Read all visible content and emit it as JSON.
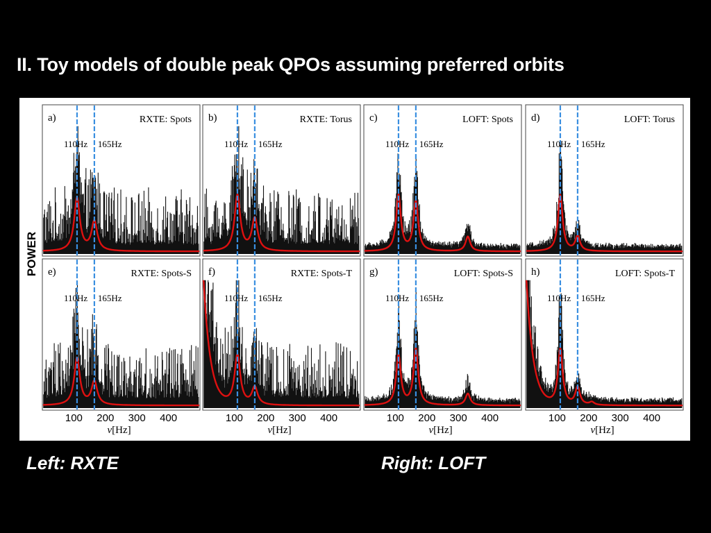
{
  "slide": {
    "title": "II. Toy models of double peak QPOs assuming preferred orbits",
    "caption_left": "Left: RXTE",
    "caption_right": "Right: LOFT"
  },
  "figure": {
    "ylabel": "POWER",
    "xlabel_prefix": "ν",
    "xlabel_unit": "[Hz]",
    "xticks": [
      100,
      200,
      300,
      400
    ],
    "xlim": [
      0,
      500
    ],
    "colors": {
      "spectrum": "#111111",
      "model": "#dd1010",
      "marker_line": "#3a8fe0",
      "frame": "#444444"
    }
  },
  "chart_data": [
    {
      "type": "line",
      "panel": "a)",
      "title": "RXTE: Spots",
      "markers": [
        {
          "x": 110,
          "label": "110Hz"
        },
        {
          "x": 165,
          "label": "165Hz"
        }
      ],
      "series": [
        {
          "values": [
            {
              "x": 110,
              "y": 0.9
            },
            {
              "x": 165,
              "y": 0.5
            }
          ]
        }
      ]
    },
    {
      "type": "line",
      "panel": "b)",
      "title": "RXTE: Torus",
      "markers": [
        {
          "x": 110,
          "label": "110Hz"
        },
        {
          "x": 165,
          "label": "165Hz"
        }
      ],
      "series": [
        {
          "values": [
            {
              "x": 110,
              "y": 0.95
            },
            {
              "x": 165,
              "y": 0.55
            }
          ]
        }
      ]
    },
    {
      "type": "line",
      "panel": "c)",
      "title": "LOFT: Spots",
      "markers": [
        {
          "x": 110,
          "label": "110Hz"
        },
        {
          "x": 165,
          "label": "165Hz"
        }
      ],
      "series": [
        {
          "values": [
            {
              "x": 110,
              "y": 0.95
            },
            {
              "x": 165,
              "y": 0.85
            },
            {
              "x": 330,
              "y": 0.25
            }
          ]
        }
      ]
    },
    {
      "type": "line",
      "panel": "d)",
      "title": "LOFT: Torus",
      "markers": [
        {
          "x": 110,
          "label": "110Hz"
        },
        {
          "x": 165,
          "label": "165Hz"
        }
      ],
      "series": [
        {
          "values": [
            {
              "x": 110,
              "y": 0.95
            },
            {
              "x": 165,
              "y": 0.25
            }
          ]
        }
      ]
    },
    {
      "type": "line",
      "panel": "e)",
      "title": "RXTE: Spots-S",
      "markers": [
        {
          "x": 110,
          "label": "110Hz"
        },
        {
          "x": 165,
          "label": "165Hz"
        }
      ],
      "series": [
        {
          "values": [
            {
              "x": 110,
              "y": 0.8
            },
            {
              "x": 165,
              "y": 0.4
            }
          ]
        }
      ]
    },
    {
      "type": "line",
      "panel": "f)",
      "title": "RXTE: Spots-T",
      "markers": [
        {
          "x": 110,
          "label": "110Hz"
        },
        {
          "x": 165,
          "label": "165Hz"
        }
      ],
      "series": [
        {
          "values": [
            {
              "x": 110,
              "y": 0.85
            },
            {
              "x": 165,
              "y": 0.3
            }
          ]
        }
      ]
    },
    {
      "type": "line",
      "panel": "g)",
      "title": "LOFT: Spots-S",
      "markers": [
        {
          "x": 110,
          "label": "110Hz"
        },
        {
          "x": 165,
          "label": "165Hz"
        }
      ],
      "series": [
        {
          "values": [
            {
              "x": 110,
              "y": 0.85
            },
            {
              "x": 165,
              "y": 0.95
            },
            {
              "x": 330,
              "y": 0.2
            }
          ]
        }
      ]
    },
    {
      "type": "line",
      "panel": "h)",
      "title": "LOFT: Spots-T",
      "markers": [
        {
          "x": 110,
          "label": "110Hz"
        },
        {
          "x": 165,
          "label": "165Hz"
        }
      ],
      "series": [
        {
          "values": [
            {
              "x": 110,
              "y": 0.95
            },
            {
              "x": 165,
              "y": 0.3
            },
            {
              "x": 210,
              "y": 0.05
            }
          ]
        }
      ]
    }
  ]
}
